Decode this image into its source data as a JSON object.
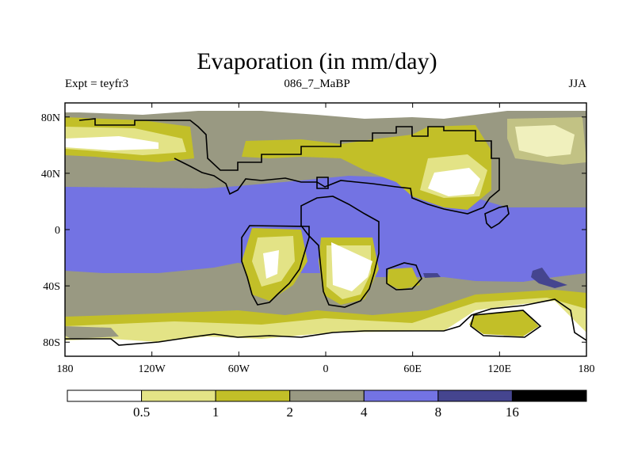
{
  "chart_data": {
    "type": "heatmap",
    "title": "Evaporation (in mm/day)",
    "left_label": "Expt = teyfr3",
    "center_label": "086_7_MaBP",
    "right_label": "JJA",
    "x_range": [
      -180,
      180
    ],
    "y_range": [
      -90,
      90
    ],
    "x_ticks": [
      {
        "value": -180,
        "label": "180"
      },
      {
        "value": -120,
        "label": "120W"
      },
      {
        "value": -60,
        "label": "60W"
      },
      {
        "value": 0,
        "label": "0"
      },
      {
        "value": 60,
        "label": "60E"
      },
      {
        "value": 120,
        "label": "120E"
      },
      {
        "value": 180,
        "label": "180"
      }
    ],
    "y_ticks": [
      {
        "value": 80,
        "label": "80N"
      },
      {
        "value": 40,
        "label": "40N"
      },
      {
        "value": 0,
        "label": "0"
      },
      {
        "value": -40,
        "label": "40S"
      },
      {
        "value": -80,
        "label": "80S"
      }
    ],
    "levels": [
      "0.5",
      "1",
      "2",
      "4",
      "8",
      "16"
    ],
    "level_colors": [
      "#ffffff",
      "#e3e386",
      "#c2bf28",
      "#999982",
      "#7373e3",
      "#45458f",
      "#000000"
    ]
  }
}
